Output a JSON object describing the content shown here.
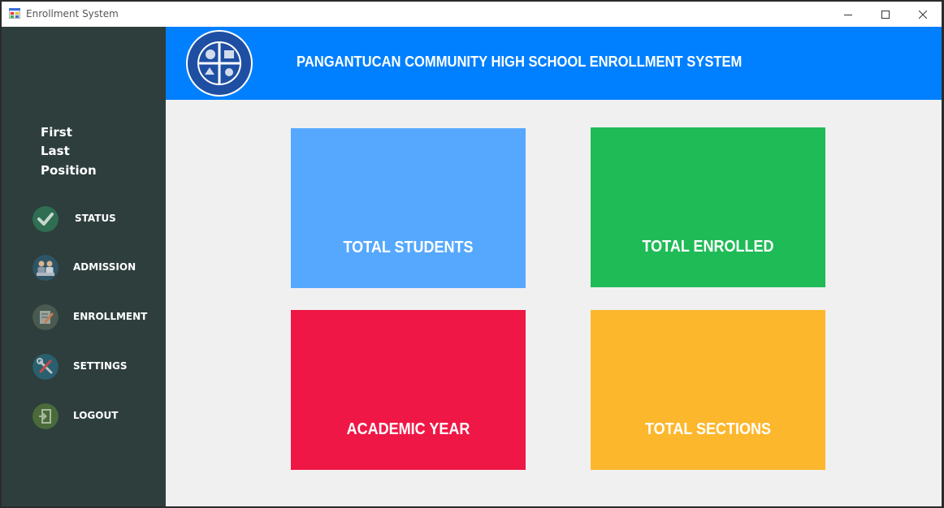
{
  "window": {
    "title": "Enrollment System"
  },
  "header": {
    "title": "PANGANTUCAN COMMUNITY HIGH SCHOOL ENROLLMENT SYSTEM"
  },
  "profile": {
    "first": "First",
    "last": "Last",
    "position": "Position"
  },
  "nav": [
    {
      "key": "status",
      "label": "STATUS",
      "icon": "check-icon",
      "color": "#2f6e52"
    },
    {
      "key": "admission",
      "label": "ADMISSION",
      "icon": "admission-people-icon",
      "color": "#2f5466"
    },
    {
      "key": "enrollment",
      "label": "ENROLLMENT",
      "icon": "edit-form-icon",
      "color": "#4a5a50"
    },
    {
      "key": "settings",
      "label": "SETTINGS",
      "icon": "tools-icon",
      "color": "#2a5f6e"
    },
    {
      "key": "logout",
      "label": "LOGOUT",
      "icon": "logout-door-icon",
      "color": "#4a6a3a"
    }
  ],
  "tiles": [
    {
      "key": "total-students",
      "label": "TOTAL STUDENTS",
      "color": "#55a8fd"
    },
    {
      "key": "total-enrolled",
      "label": "TOTAL ENROLLED",
      "color": "#1fbb56"
    },
    {
      "key": "academic-year",
      "label": "ACADEMIC YEAR",
      "color": "#ef1746"
    },
    {
      "key": "total-sections",
      "label": "TOTAL SECTIONS",
      "color": "#fdb72c"
    }
  ],
  "colors": {
    "sidebar": "#2d3e3d",
    "header": "#0080ff",
    "content": "#f0f0f0"
  }
}
